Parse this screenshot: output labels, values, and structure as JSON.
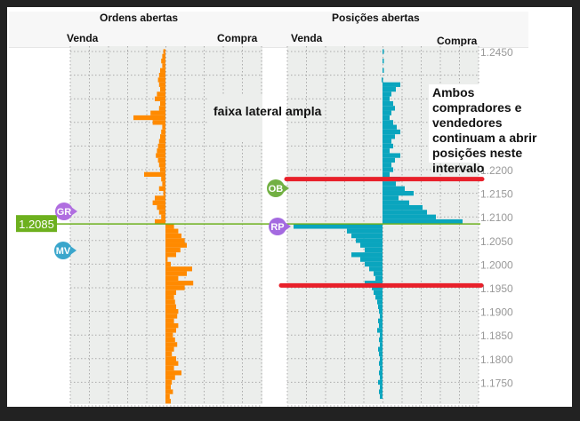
{
  "headers": {
    "left_title": "Ordens abertas",
    "right_title": "Posições abertas",
    "sell": "Venda",
    "buy": "Compra"
  },
  "annotations": {
    "range": "faixa lateral ampla",
    "note": "Ambos compradores e vendedores continuam a abrir posições neste intervalo"
  },
  "markers": {
    "current_price": "1.2085",
    "gr": "GR",
    "mv": "MV",
    "ob": "OB",
    "rp": "RP"
  },
  "colors": {
    "orders": "#ff8a00",
    "positions": "#0aa5be",
    "price_line": "#6db01e",
    "highlight": "#e8202a"
  },
  "chart_data": [
    {
      "type": "bar",
      "title": "Ordens abertas",
      "orientation": "horizontal",
      "price_top": 1.245,
      "price_step": 0.001,
      "yticks": [
        "1.2450",
        "1.2200",
        "1.2150",
        "1.2100",
        "1.2050",
        "1.2000",
        "1.1950",
        "1.1900",
        "1.1850",
        "1.1800",
        "1.1750"
      ],
      "values": [
        -2,
        -3,
        -4,
        -3,
        -5,
        -6,
        -7,
        -6,
        -5,
        -8,
        -10,
        -5,
        -6,
        -14,
        -30,
        -12,
        -3,
        -4,
        -5,
        -6,
        -7,
        -8,
        -9,
        -7,
        -6,
        -5,
        -20,
        -4,
        -3,
        -6,
        -2,
        -10,
        -12,
        -8,
        -6,
        -4,
        -10,
        8,
        12,
        15,
        18,
        20,
        14,
        10,
        2,
        5,
        25,
        20,
        12,
        26,
        18,
        10,
        8,
        9,
        10,
        12,
        11,
        8,
        12,
        10,
        7,
        9,
        11,
        8,
        6,
        10,
        12,
        8,
        15,
        9,
        6,
        5,
        7,
        4,
        5
      ]
    },
    {
      "type": "bar",
      "title": "Posições abertas",
      "orientation": "horizontal",
      "price_top": 1.245,
      "price_step": 0.001,
      "values": [
        1,
        0,
        1,
        0,
        1,
        0,
        -1,
        20,
        15,
        10,
        8,
        12,
        14,
        10,
        8,
        12,
        16,
        20,
        14,
        10,
        12,
        8,
        20,
        14,
        10,
        12,
        8,
        20,
        15,
        25,
        35,
        18,
        30,
        45,
        50,
        60,
        90,
        -100,
        -40,
        -35,
        -30,
        -25,
        -20,
        -35,
        -25,
        -20,
        -15,
        -10,
        -8,
        -20,
        -12,
        -10,
        -8,
        -6,
        -5,
        -4,
        -3,
        -5,
        -4,
        -6,
        -3,
        -4,
        -3,
        -5,
        -4,
        -3,
        -4,
        -3,
        -4,
        -3,
        -5,
        -3,
        -4,
        -3
      ]
    }
  ]
}
